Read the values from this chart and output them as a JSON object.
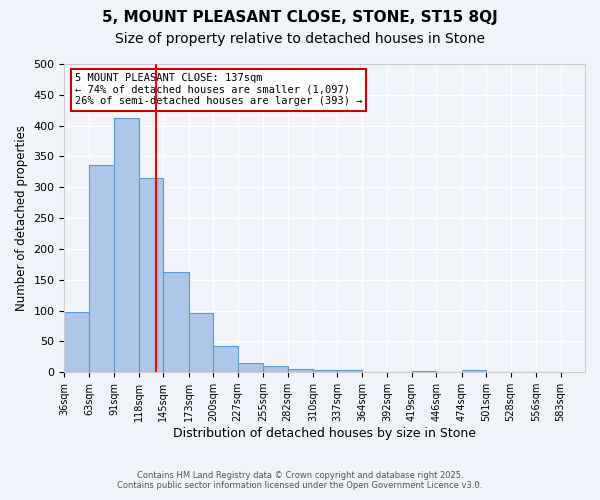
{
  "title1": "5, MOUNT PLEASANT CLOSE, STONE, ST15 8QJ",
  "title2": "Size of property relative to detached houses in Stone",
  "xlabel": "Distribution of detached houses by size in Stone",
  "ylabel": "Number of detached properties",
  "bin_labels": [
    "36sqm",
    "63sqm",
    "91sqm",
    "118sqm",
    "145sqm",
    "173sqm",
    "200sqm",
    "227sqm",
    "255sqm",
    "282sqm",
    "310sqm",
    "337sqm",
    "364sqm",
    "392sqm",
    "419sqm",
    "446sqm",
    "474sqm",
    "501sqm",
    "528sqm",
    "556sqm",
    "583sqm"
  ],
  "bin_edges": [
    36,
    63,
    91,
    118,
    145,
    173,
    200,
    227,
    255,
    282,
    310,
    337,
    364,
    392,
    419,
    446,
    474,
    501,
    528,
    556,
    583
  ],
  "bar_heights": [
    97,
    336,
    413,
    315,
    163,
    96,
    42,
    15,
    10,
    5,
    4,
    3,
    0,
    0,
    2,
    0,
    3,
    0,
    0,
    0
  ],
  "bar_color": "#aec6e8",
  "bar_edge_color": "#5b9bd5",
  "red_line_x": 137,
  "annotation_title": "5 MOUNT PLEASANT CLOSE: 137sqm",
  "annotation_line1": "← 74% of detached houses are smaller (1,097)",
  "annotation_line2": "26% of semi-detached houses are larger (393) →",
  "annotation_box_color": "#ffffff",
  "annotation_box_edge": "#cc0000",
  "footnote1": "Contains HM Land Registry data © Crown copyright and database right 2025.",
  "footnote2": "Contains public sector information licensed under the Open Government Licence v3.0.",
  "ylim": [
    0,
    500
  ],
  "yticks": [
    0,
    50,
    100,
    150,
    200,
    250,
    300,
    350,
    400,
    450,
    500
  ],
  "background_color": "#f0f4fa",
  "grid_color": "#ffffff",
  "title_fontsize": 11,
  "subtitle_fontsize": 10
}
